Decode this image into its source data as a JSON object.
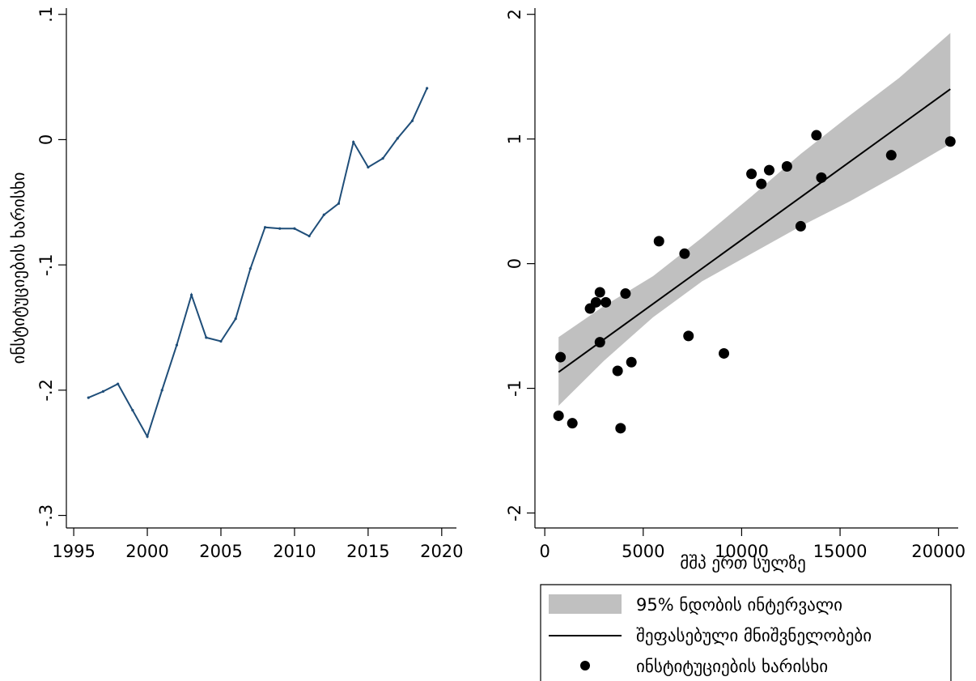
{
  "chart_data": [
    {
      "type": "line",
      "title": "",
      "xlabel": "",
      "ylabel": "ინსტიტუციების ხარისხი",
      "xlim": [
        1994.5,
        2021
      ],
      "ylim": [
        -0.31,
        0.105
      ],
      "grid": false,
      "x_ticks": [
        {
          "value": 1995,
          "label": "1995"
        },
        {
          "value": 2000,
          "label": "2000"
        },
        {
          "value": 2005,
          "label": "2005"
        },
        {
          "value": 2010,
          "label": "2010"
        },
        {
          "value": 2015,
          "label": "2015"
        },
        {
          "value": 2020,
          "label": "2020"
        }
      ],
      "y_ticks": [
        {
          "value": -0.3,
          "label": "-.3"
        },
        {
          "value": -0.2,
          "label": "-.2"
        },
        {
          "value": -0.1,
          "label": "-.1"
        },
        {
          "value": 0,
          "label": "0"
        },
        {
          "value": 0.1,
          "label": ".1"
        }
      ],
      "line_color": "#1f4e79",
      "x": [
        1996,
        1997,
        1998,
        1999,
        2000,
        2001,
        2002,
        2003,
        2004,
        2005,
        2006,
        2007,
        2008,
        2009,
        2010,
        2011,
        2012,
        2013,
        2014,
        2015,
        2016,
        2017,
        2018,
        2019
      ],
      "values": [
        -0.206,
        -0.201,
        -0.195,
        -0.216,
        -0.237,
        -0.2,
        -0.164,
        -0.124,
        -0.158,
        -0.161,
        -0.143,
        -0.103,
        -0.07,
        -0.071,
        -0.071,
        -0.077,
        -0.06,
        -0.051,
        -0.002,
        -0.022,
        -0.015,
        0.001,
        0.015,
        0.041
      ]
    },
    {
      "type": "scatter",
      "title": "",
      "xlabel": "მშპ ერთ სულზე",
      "ylabel": "",
      "xlim": [
        -500,
        21000
      ],
      "ylim": [
        -2.12,
        2.05
      ],
      "grid": false,
      "x_ticks": [
        {
          "value": 0,
          "label": "0"
        },
        {
          "value": 5000,
          "label": "5000"
        },
        {
          "value": 10000,
          "label": "10000"
        },
        {
          "value": 15000,
          "label": "15000"
        },
        {
          "value": 20000,
          "label": "20000"
        }
      ],
      "y_ticks": [
        {
          "value": -2,
          "label": "-2"
        },
        {
          "value": -1,
          "label": "-1"
        },
        {
          "value": 0,
          "label": "0"
        },
        {
          "value": 1,
          "label": "1"
        },
        {
          "value": 2,
          "label": "2"
        }
      ],
      "points_color": "#000000",
      "fit_color": "#000000",
      "ci_color": "#c0c0c0",
      "points": [
        {
          "x": 800,
          "y": -0.75
        },
        {
          "x": 700,
          "y": -1.22
        },
        {
          "x": 1400,
          "y": -1.28
        },
        {
          "x": 2300,
          "y": -0.36
        },
        {
          "x": 2600,
          "y": -0.31
        },
        {
          "x": 2800,
          "y": -0.23
        },
        {
          "x": 3100,
          "y": -0.31
        },
        {
          "x": 2800,
          "y": -0.63
        },
        {
          "x": 3700,
          "y": -0.86
        },
        {
          "x": 3850,
          "y": -1.32
        },
        {
          "x": 4100,
          "y": -0.24
        },
        {
          "x": 4400,
          "y": -0.79
        },
        {
          "x": 5800,
          "y": 0.18
        },
        {
          "x": 7100,
          "y": 0.08
        },
        {
          "x": 7300,
          "y": -0.58
        },
        {
          "x": 9100,
          "y": -0.72
        },
        {
          "x": 10500,
          "y": 0.72
        },
        {
          "x": 11000,
          "y": 0.64
        },
        {
          "x": 11400,
          "y": 0.75
        },
        {
          "x": 12300,
          "y": 0.78
        },
        {
          "x": 13000,
          "y": 0.3
        },
        {
          "x": 13800,
          "y": 1.03
        },
        {
          "x": 14050,
          "y": 0.69
        },
        {
          "x": 17600,
          "y": 0.87
        },
        {
          "x": 20600,
          "y": 0.98
        }
      ],
      "fit": {
        "x": [
          700,
          20600
        ],
        "y": [
          -0.87,
          1.4
        ]
      },
      "ci": {
        "x": [
          700,
          3000,
          5500,
          8000,
          10500,
          13000,
          15500,
          18000,
          20600
        ],
        "upper": [
          -0.59,
          -0.34,
          -0.1,
          0.21,
          0.54,
          0.88,
          1.19,
          1.49,
          1.85
        ],
        "lower": [
          -1.14,
          -0.78,
          -0.43,
          -0.14,
          0.08,
          0.3,
          0.5,
          0.72,
          0.96
        ]
      },
      "legend": {
        "placement": "bottom",
        "entries": [
          {
            "kind": "ci",
            "label": "95% ნდობის ინტერვალი"
          },
          {
            "kind": "fit",
            "label": "შეფასებული მნიშვნელობები"
          },
          {
            "kind": "points",
            "label": "ინსტიტუციების ხარისხი"
          }
        ]
      }
    }
  ]
}
